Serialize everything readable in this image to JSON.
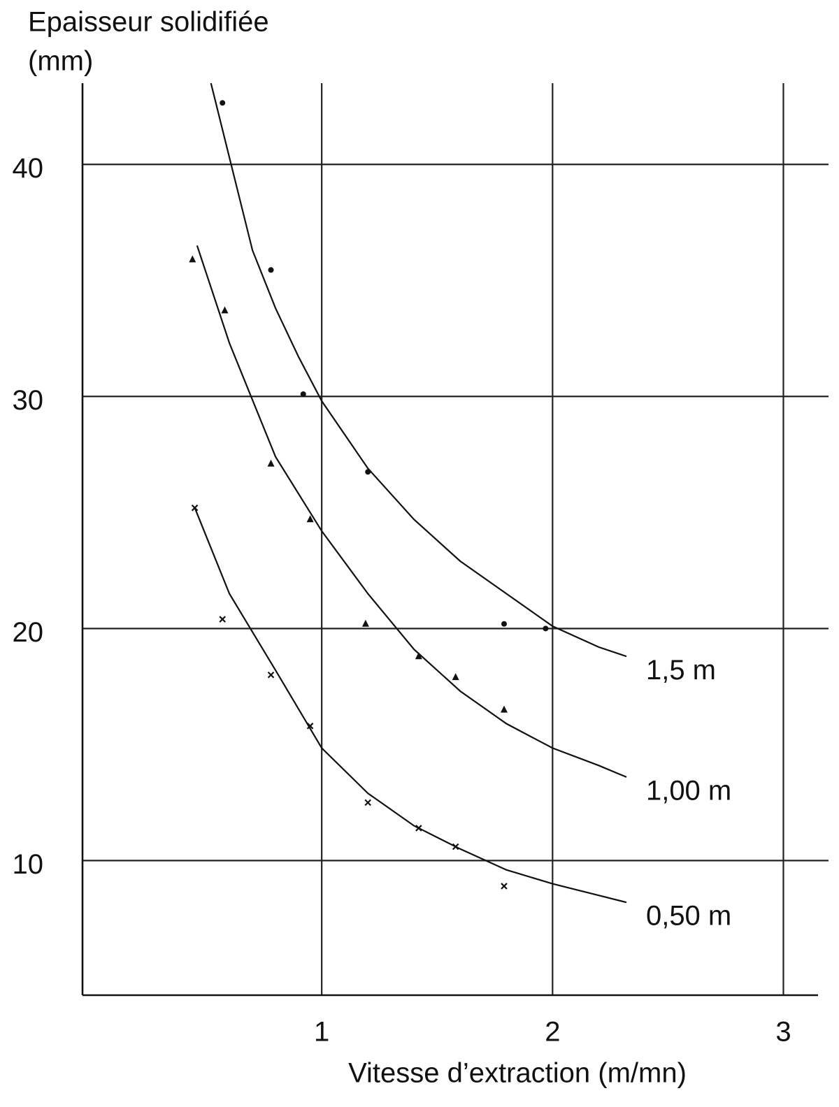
{
  "chart_data": {
    "type": "line",
    "xlabel": "Vitesse d’extraction (m/mn)",
    "ylabel": [
      "Epaisseur solidifiée",
      "(mm)"
    ],
    "xlim": [
      0,
      3.15
    ],
    "ylim": [
      4.2,
      43.5
    ],
    "xticks": [
      1,
      2,
      3
    ],
    "yticks": [
      10,
      20,
      30,
      40
    ],
    "grid": true,
    "series": [
      {
        "name": "1,5 m",
        "color": "#111111",
        "marker": "circle",
        "x": [
          0.52,
          0.6,
          0.7,
          0.8,
          0.9,
          1.0,
          1.2,
          1.4,
          1.6,
          1.8,
          2.0,
          2.2,
          2.32
        ],
        "values": [
          43.5,
          40.3,
          36.3,
          33.8,
          31.7,
          29.8,
          26.9,
          24.7,
          22.9,
          21.5,
          20.1,
          19.2,
          18.8
        ],
        "points": {
          "x": [
            0.57,
            0.78,
            0.92,
            1.2,
            1.79,
            1.97
          ],
          "y": [
            42.65,
            35.45,
            30.1,
            26.75,
            20.2,
            20.0
          ]
        }
      },
      {
        "name": "1,00 m",
        "color": "#111111",
        "marker": "triangle",
        "x": [
          0.46,
          0.6,
          0.8,
          1.0,
          1.2,
          1.4,
          1.6,
          1.8,
          2.0,
          2.2,
          2.32
        ],
        "values": [
          36.5,
          32.3,
          27.4,
          24.2,
          21.5,
          19.1,
          17.3,
          15.9,
          14.85,
          14.1,
          13.6
        ],
        "points": {
          "x": [
            0.44,
            0.58,
            0.78,
            0.95,
            1.19,
            1.42,
            1.58,
            1.79
          ],
          "y": [
            35.9,
            33.7,
            27.1,
            24.7,
            20.2,
            18.8,
            17.9,
            16.5
          ]
        }
      },
      {
        "name": "0,50 m",
        "color": "#111111",
        "marker": "cross",
        "x": [
          0.45,
          0.6,
          0.8,
          1.0,
          1.2,
          1.4,
          1.6,
          1.8,
          2.0,
          2.2,
          2.32
        ],
        "values": [
          25.2,
          21.5,
          18.2,
          14.85,
          12.9,
          11.5,
          10.5,
          9.6,
          9.0,
          8.5,
          8.2
        ],
        "points": {
          "x": [
            0.45,
            0.57,
            0.78,
            0.95,
            1.2,
            1.42,
            1.58,
            1.79
          ],
          "y": [
            25.2,
            20.4,
            18.0,
            15.8,
            12.5,
            11.4,
            10.6,
            8.9
          ]
        }
      }
    ]
  }
}
